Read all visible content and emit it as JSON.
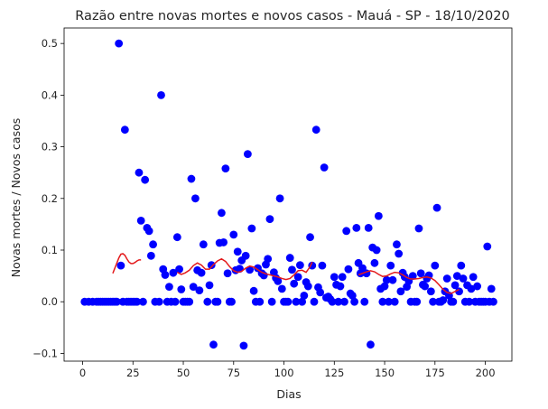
{
  "colors": {
    "points": "#0000ff",
    "trend": "#e31a1c",
    "axis": "#000000",
    "text": "#262626"
  },
  "chart_data": {
    "type": "scatter",
    "title": "Razão entre novas mortes e novos casos - Mauá - SP - 18/10/2020",
    "xlabel": "Dias",
    "ylabel": "Novas mortes / Novos casos",
    "xlim": [
      -9.2,
      213.2
    ],
    "ylim": [
      -0.115,
      0.53
    ],
    "xticks": [
      0,
      25,
      50,
      75,
      100,
      125,
      150,
      175,
      200
    ],
    "yticks": [
      -0.1,
      0.0,
      0.1,
      0.2,
      0.3,
      0.4,
      0.5
    ],
    "ytick_labels": [
      "−0.1",
      "0.0",
      "0.1",
      "0.2",
      "0.3",
      "0.4",
      "0.5"
    ],
    "grid": false,
    "series": [
      {
        "kind": "scatter",
        "points": [
          [
            1,
            0
          ],
          [
            3,
            0
          ],
          [
            5,
            0
          ],
          [
            7,
            0
          ],
          [
            8,
            0
          ],
          [
            9,
            0
          ],
          [
            10,
            0
          ],
          [
            11,
            0
          ],
          [
            12,
            0
          ],
          [
            13,
            0
          ],
          [
            14,
            0
          ],
          [
            15,
            0
          ],
          [
            16,
            0
          ],
          [
            17,
            0
          ],
          [
            18,
            0.5
          ],
          [
            19,
            0.07
          ],
          [
            20,
            0
          ],
          [
            21,
            0.333
          ],
          [
            22,
            0
          ],
          [
            23,
            0
          ],
          [
            24,
            0
          ],
          [
            25,
            0
          ],
          [
            26,
            0
          ],
          [
            27,
            0
          ],
          [
            28,
            0.25
          ],
          [
            29,
            0.157
          ],
          [
            30,
            0
          ],
          [
            31,
            0.236
          ],
          [
            32,
            0.143
          ],
          [
            33,
            0.137
          ],
          [
            34,
            0.089
          ],
          [
            35,
            0.111
          ],
          [
            36,
            0
          ],
          [
            38,
            0
          ],
          [
            39,
            0.4
          ],
          [
            40,
            0.063
          ],
          [
            41,
            0.052
          ],
          [
            42,
            0
          ],
          [
            43,
            0.029
          ],
          [
            44,
            0
          ],
          [
            45,
            0.056
          ],
          [
            46,
            0
          ],
          [
            47,
            0.125
          ],
          [
            48,
            0.063
          ],
          [
            49,
            0.024
          ],
          [
            50,
            0
          ],
          [
            51,
            0
          ],
          [
            52,
            0
          ],
          [
            53,
            0
          ],
          [
            54,
            0.238
          ],
          [
            55,
            0.029
          ],
          [
            56,
            0.2
          ],
          [
            57,
            0.061
          ],
          [
            58,
            0.022
          ],
          [
            59,
            0.056
          ],
          [
            60,
            0.111
          ],
          [
            62,
            0
          ],
          [
            63,
            0.032
          ],
          [
            64,
            0.071
          ],
          [
            65,
            -0.083
          ],
          [
            66,
            0
          ],
          [
            67,
            0
          ],
          [
            68,
            0.114
          ],
          [
            69,
            0.172
          ],
          [
            70,
            0.115
          ],
          [
            71,
            0.258
          ],
          [
            72,
            0.055
          ],
          [
            73,
            0
          ],
          [
            74,
            0
          ],
          [
            75,
            0.13
          ],
          [
            76,
            0.061
          ],
          [
            77,
            0.097
          ],
          [
            78,
            0.064
          ],
          [
            79,
            0.08
          ],
          [
            80,
            -0.085
          ],
          [
            81,
            0.089
          ],
          [
            82,
            0.286
          ],
          [
            83,
            0.062
          ],
          [
            84,
            0.142
          ],
          [
            85,
            0.021
          ],
          [
            86,
            0
          ],
          [
            87,
            0.065
          ],
          [
            88,
            0
          ],
          [
            89,
            0.055
          ],
          [
            90,
            0.051
          ],
          [
            91,
            0.072
          ],
          [
            92,
            0.083
          ],
          [
            93,
            0.16
          ],
          [
            94,
            0
          ],
          [
            95,
            0.057
          ],
          [
            96,
            0.046
          ],
          [
            97,
            0.04
          ],
          [
            98,
            0.2
          ],
          [
            99,
            0.025
          ],
          [
            100,
            0
          ],
          [
            101,
            0
          ],
          [
            102,
            0
          ],
          [
            103,
            0.085
          ],
          [
            104,
            0.062
          ],
          [
            105,
            0.035
          ],
          [
            106,
            0
          ],
          [
            107,
            0.048
          ],
          [
            108,
            0.071
          ],
          [
            109,
            0
          ],
          [
            110,
            0.012
          ],
          [
            111,
            0.038
          ],
          [
            112,
            0.03
          ],
          [
            113,
            0.125
          ],
          [
            114,
            0.07
          ],
          [
            115,
            0
          ],
          [
            116,
            0.333
          ],
          [
            117,
            0.028
          ],
          [
            118,
            0.018
          ],
          [
            119,
            0.07
          ],
          [
            120,
            0.26
          ],
          [
            121,
            0.008
          ],
          [
            122,
            0.01
          ],
          [
            123,
            0.005
          ],
          [
            124,
            0
          ],
          [
            125,
            0.048
          ],
          [
            126,
            0.033
          ],
          [
            127,
            0
          ],
          [
            128,
            0.03
          ],
          [
            129,
            0.048
          ],
          [
            130,
            0
          ],
          [
            131,
            0.137
          ],
          [
            132,
            0.063
          ],
          [
            133,
            0.016
          ],
          [
            134,
            0.012
          ],
          [
            135,
            0
          ],
          [
            136,
            0.143
          ],
          [
            137,
            0.075
          ],
          [
            138,
            0.055
          ],
          [
            139,
            0.065
          ],
          [
            140,
            0
          ],
          [
            141,
            0.055
          ],
          [
            142,
            0.143
          ],
          [
            143,
            -0.083
          ],
          [
            144,
            0.105
          ],
          [
            145,
            0.075
          ],
          [
            146,
            0.1
          ],
          [
            147,
            0.166
          ],
          [
            148,
            0.025
          ],
          [
            149,
            0
          ],
          [
            150,
            0.03
          ],
          [
            151,
            0.042
          ],
          [
            152,
            0
          ],
          [
            153,
            0.07
          ],
          [
            154,
            0.042
          ],
          [
            155,
            0
          ],
          [
            156,
            0.111
          ],
          [
            157,
            0.093
          ],
          [
            158,
            0.02
          ],
          [
            159,
            0.056
          ],
          [
            160,
            0.048
          ],
          [
            161,
            0.029
          ],
          [
            162,
            0.04
          ],
          [
            163,
            0
          ],
          [
            164,
            0.05
          ],
          [
            165,
            0
          ],
          [
            166,
            0
          ],
          [
            167,
            0.142
          ],
          [
            168,
            0.055
          ],
          [
            169,
            0.033
          ],
          [
            170,
            0.03
          ],
          [
            171,
            0.045
          ],
          [
            172,
            0.051
          ],
          [
            173,
            0.02
          ],
          [
            174,
            0
          ],
          [
            175,
            0.07
          ],
          [
            176,
            0.182
          ],
          [
            177,
            0
          ],
          [
            178,
            0
          ],
          [
            179,
            0.003
          ],
          [
            180,
            0.02
          ],
          [
            181,
            0.045
          ],
          [
            182,
            0.012
          ],
          [
            183,
            0
          ],
          [
            184,
            0
          ],
          [
            185,
            0.032
          ],
          [
            186,
            0.05
          ],
          [
            187,
            0.02
          ],
          [
            188,
            0.07
          ],
          [
            189,
            0.045
          ],
          [
            190,
            0
          ],
          [
            191,
            0.032
          ],
          [
            192,
            0
          ],
          [
            193,
            0.025
          ],
          [
            194,
            0.048
          ],
          [
            195,
            0
          ],
          [
            196,
            0.03
          ],
          [
            197,
            0
          ],
          [
            198,
            0
          ],
          [
            199,
            0
          ],
          [
            200,
            0
          ],
          [
            201,
            0.107
          ],
          [
            202,
            0
          ],
          [
            203,
            0.025
          ],
          [
            204,
            0
          ]
        ]
      },
      {
        "kind": "line",
        "segments": [
          [
            [
              15,
              0.055
            ],
            [
              16,
              0.065
            ],
            [
              17,
              0.075
            ],
            [
              18,
              0.085
            ],
            [
              19,
              0.092
            ],
            [
              20,
              0.093
            ],
            [
              21,
              0.09
            ],
            [
              22,
              0.083
            ],
            [
              23,
              0.077
            ],
            [
              24,
              0.074
            ],
            [
              25,
              0.074
            ],
            [
              26,
              0.076
            ],
            [
              27,
              0.079
            ],
            [
              28,
              0.081
            ],
            [
              29,
              0.081
            ]
          ],
          [
            [
              47,
              0.057
            ],
            [
              49,
              0.053
            ],
            [
              51,
              0.056
            ],
            [
              53,
              0.061
            ],
            [
              55,
              0.07
            ],
            [
              57,
              0.075
            ],
            [
              59,
              0.071
            ],
            [
              61,
              0.063
            ],
            [
              63,
              0.063
            ],
            [
              65,
              0.072
            ],
            [
              67,
              0.079
            ],
            [
              69,
              0.083
            ],
            [
              71,
              0.078
            ],
            [
              73,
              0.068
            ],
            [
              75,
              0.06
            ],
            [
              77,
              0.057
            ],
            [
              79,
              0.059
            ],
            [
              81,
              0.065
            ],
            [
              83,
              0.069
            ],
            [
              85,
              0.067
            ],
            [
              87,
              0.062
            ],
            [
              89,
              0.057
            ],
            [
              91,
              0.054
            ],
            [
              93,
              0.052
            ],
            [
              95,
              0.05
            ],
            [
              97,
              0.048
            ],
            [
              99,
              0.045
            ],
            [
              101,
              0.043
            ],
            [
              103,
              0.045
            ],
            [
              105,
              0.052
            ],
            [
              107,
              0.06
            ],
            [
              109,
              0.061
            ],
            [
              111,
              0.057
            ],
            [
              113,
              0.068
            ],
            [
              114,
              0.077
            ]
          ],
          [
            [
              137,
              0.052
            ],
            [
              139,
              0.055
            ],
            [
              141,
              0.058
            ],
            [
              143,
              0.06
            ],
            [
              145,
              0.058
            ],
            [
              147,
              0.053
            ],
            [
              149,
              0.049
            ],
            [
              151,
              0.05
            ],
            [
              153,
              0.054
            ],
            [
              155,
              0.057
            ],
            [
              157,
              0.056
            ],
            [
              159,
              0.052
            ],
            [
              161,
              0.047
            ],
            [
              163,
              0.044
            ],
            [
              165,
              0.044
            ],
            [
              167,
              0.045
            ],
            [
              169,
              0.047
            ],
            [
              171,
              0.048
            ],
            [
              173,
              0.046
            ],
            [
              175,
              0.041
            ],
            [
              177,
              0.033
            ],
            [
              179,
              0.024
            ],
            [
              181,
              0.018
            ],
            [
              183,
              0.016
            ],
            [
              185,
              0.02
            ],
            [
              187,
              0.024
            ]
          ]
        ]
      }
    ]
  }
}
